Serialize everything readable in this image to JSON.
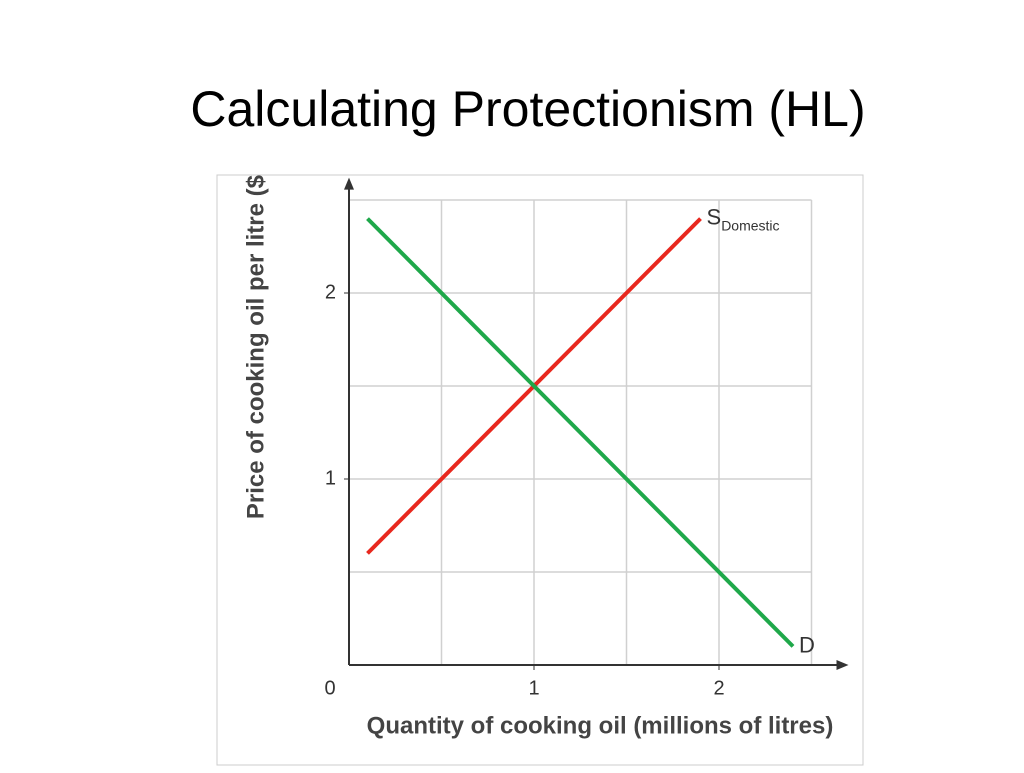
{
  "title": "Calculating Protectionism (HL)",
  "chart_data": {
    "type": "line",
    "x_label": "Quantity of cooking oil (millions of litres)",
    "y_label": "Price of cooking oil per litre ($",
    "origin_label": 0,
    "xlim": [
      0,
      2.7
    ],
    "ylim": [
      0,
      2.62
    ],
    "xticks": [
      1,
      2
    ],
    "yticks": [
      1,
      2
    ],
    "grid": true,
    "grid_x": [
      0.5,
      1,
      1.5,
      2,
      2.5
    ],
    "grid_y": [
      0.5,
      1,
      1.5,
      2,
      2.5
    ],
    "series": [
      {
        "name": "S",
        "subscript": "Domestic",
        "color": "#e8281e",
        "x": [
          0.1,
          1.9
        ],
        "values": [
          0.6,
          2.4
        ]
      },
      {
        "name": "D",
        "color": "#1fa84a",
        "x": [
          0.1,
          2.4
        ],
        "values": [
          2.4,
          0.1
        ]
      }
    ]
  }
}
